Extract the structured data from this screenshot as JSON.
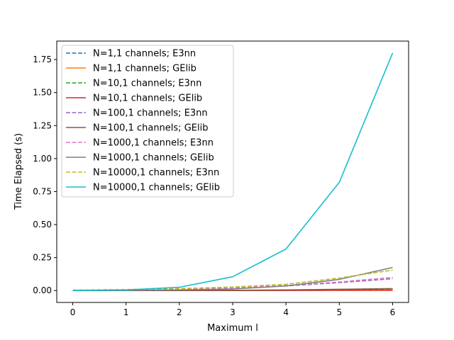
{
  "chart_data": {
    "type": "line",
    "title": "",
    "xlabel": "Maximum l",
    "ylabel": "Time Elapsed (s)",
    "xlim": [
      -0.3,
      6.3
    ],
    "ylim": [
      -0.09,
      1.89
    ],
    "x": [
      0,
      1,
      2,
      3,
      4,
      5,
      6
    ],
    "xticks": [
      0,
      1,
      2,
      3,
      4,
      5,
      6
    ],
    "yticks": [
      0.0,
      0.25,
      0.5,
      0.75,
      1.0,
      1.25,
      1.5,
      1.75
    ],
    "ytick_labels": [
      "0.00",
      "0.25",
      "0.50",
      "0.75",
      "1.00",
      "1.25",
      "1.50",
      "1.75"
    ],
    "grid": false,
    "legend_position": "top-left",
    "series": [
      {
        "name": "N=1,1 channels; E3nn",
        "color": "#1f77b4",
        "dashed": true,
        "values": [
          0.0,
          0.0,
          0.0,
          0.001,
          0.002,
          0.003,
          0.004
        ]
      },
      {
        "name": "N=1,1 channels; GElib",
        "color": "#ff7f0e",
        "dashed": false,
        "values": [
          0.0,
          0.0,
          0.0,
          0.0,
          0.001,
          0.001,
          0.002
        ]
      },
      {
        "name": "N=10,1 channels; E3nn",
        "color": "#2ca02c",
        "dashed": true,
        "values": [
          0.0,
          0.0,
          0.001,
          0.001,
          0.003,
          0.004,
          0.006
        ]
      },
      {
        "name": "N=10,1 channels; GElib",
        "color": "#d62728",
        "dashed": false,
        "values": [
          0.0,
          0.0,
          0.0,
          0.001,
          0.002,
          0.003,
          0.004
        ]
      },
      {
        "name": "N=100,1 channels; E3nn",
        "color": "#9467bd",
        "dashed": true,
        "values": [
          0.002,
          0.004,
          0.008,
          0.018,
          0.035,
          0.06,
          0.09
        ]
      },
      {
        "name": "N=100,1 channels; GElib",
        "color": "#8c564b",
        "dashed": false,
        "values": [
          0.0,
          0.0,
          0.001,
          0.002,
          0.005,
          0.01,
          0.015
        ]
      },
      {
        "name": "N=1000,1 channels; E3nn",
        "color": "#e377c2",
        "dashed": true,
        "values": [
          0.002,
          0.004,
          0.009,
          0.02,
          0.038,
          0.065,
          0.1
        ]
      },
      {
        "name": "N=1000,1 channels; GElib",
        "color": "#7f7f7f",
        "dashed": false,
        "values": [
          0.0,
          0.002,
          0.005,
          0.012,
          0.035,
          0.085,
          0.175
        ]
      },
      {
        "name": "N=10000,1 channels; E3nn",
        "color": "#bcbd22",
        "dashed": true,
        "values": [
          0.004,
          0.008,
          0.015,
          0.027,
          0.048,
          0.095,
          0.155
        ]
      },
      {
        "name": "N=10000,1 channels; GElib",
        "color": "#17becf",
        "dashed": false,
        "values": [
          0.0,
          0.005,
          0.025,
          0.105,
          0.315,
          0.82,
          1.8
        ]
      }
    ]
  }
}
